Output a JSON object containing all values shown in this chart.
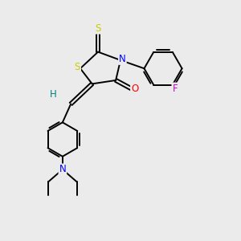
{
  "bg_color": "#ebebeb",
  "atom_colors": {
    "S": "#cccc00",
    "N": "#0000ff",
    "O": "#ff0000",
    "F": "#cc00cc",
    "C": "#000000",
    "H": "#008080"
  },
  "bond_color": "#000000",
  "bond_width": 1.4,
  "font_size_atom": 8.5
}
